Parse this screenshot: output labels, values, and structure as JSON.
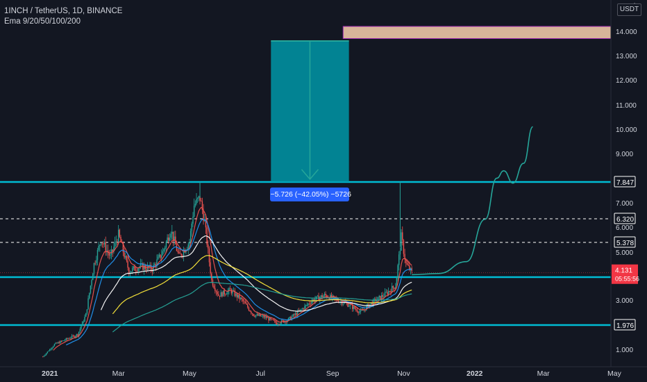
{
  "header": {
    "symbol_line": "1INCH / TetherUS, 1D, BINANCE",
    "indicator_line": "Ema 9/20/50/100/200"
  },
  "price_axis": {
    "unit_button": "USDT",
    "partial_top_label": "1",
    "ticks": [
      {
        "value": 14.0,
        "label": "14.000"
      },
      {
        "value": 13.0,
        "label": "13.000"
      },
      {
        "value": 12.0,
        "label": "12.000"
      },
      {
        "value": 11.0,
        "label": "11.000"
      },
      {
        "value": 10.0,
        "label": "10.000"
      },
      {
        "value": 9.0,
        "label": "9.000"
      },
      {
        "value": 8.0,
        "label": "8.000"
      },
      {
        "value": 7.0,
        "label": "7.000"
      },
      {
        "value": 6.0,
        "label": "6.000"
      },
      {
        "value": 5.0,
        "label": "5.000"
      },
      {
        "value": 3.0,
        "label": "3.000"
      },
      {
        "value": 1.0,
        "label": "1.000"
      }
    ],
    "badges": [
      {
        "value": 7.847,
        "label": "7.847",
        "bg": "#131722",
        "border": "#ffffff",
        "fg": "#ffffff"
      },
      {
        "value": 6.32,
        "label": "6.320",
        "bg": "#131722",
        "border": "#ffffff",
        "fg": "#ffffff"
      },
      {
        "value": 5.378,
        "label": "5.378",
        "bg": "#131722",
        "border": "#ffffff",
        "fg": "#ffffff"
      },
      {
        "value": 3.947,
        "label": "3.947",
        "bg": "#00bcd4",
        "border": "#00bcd4",
        "fg": "#131722"
      },
      {
        "value": 1.976,
        "label": "1.976",
        "bg": "#131722",
        "border": "#ffffff",
        "fg": "#ffffff"
      }
    ],
    "last_price": {
      "label": "4.131",
      "countdown": "05:55:56",
      "bg": "#f23645"
    }
  },
  "time_axis": {
    "labels": [
      {
        "date": "2021-01-01",
        "label": "2021",
        "bold": true
      },
      {
        "date": "2021-03-01",
        "label": "Mar",
        "bold": false
      },
      {
        "date": "2021-05-01",
        "label": "May",
        "bold": false
      },
      {
        "date": "2021-07-01",
        "label": "Jul",
        "bold": false
      },
      {
        "date": "2021-09-01",
        "label": "Sep",
        "bold": false
      },
      {
        "date": "2021-11-01",
        "label": "Nov",
        "bold": false
      },
      {
        "date": "2022-01-01",
        "label": "2022",
        "bold": true
      },
      {
        "date": "2022-03-01",
        "label": "Mar",
        "bold": false
      },
      {
        "date": "2022-05-01",
        "label": "May",
        "bold": false
      }
    ]
  },
  "measure_tool": {
    "label": "−5.726 (−42.05%) −5726",
    "from_price": 13.6,
    "to_price": 7.847,
    "start_date": "2021-07-10",
    "end_date": "2021-09-15",
    "fill": "#0097a7",
    "line": "#26a69a"
  },
  "target_zone": {
    "from_price": 13.7,
    "to_price": 14.2,
    "start_date": "2021-09-10",
    "fill": "#d7b59a",
    "border": "#9c27b0"
  },
  "horizontal_levels": [
    {
      "price": 7.847,
      "style": "solid",
      "color": "#00bcd4"
    },
    {
      "price": 6.32,
      "style": "dashed",
      "color": "#ffffff"
    },
    {
      "price": 5.378,
      "style": "dashed",
      "color": "#ffffff"
    },
    {
      "price": 3.947,
      "style": "solid",
      "color": "#00bcd4"
    },
    {
      "price": 1.976,
      "style": "solid",
      "color": "#00bcd4"
    }
  ],
  "projection_path": [
    {
      "date": "2021-11-08",
      "price": 4.05
    },
    {
      "date": "2021-12-01",
      "price": 4.1
    },
    {
      "date": "2021-12-25",
      "price": 4.6
    },
    {
      "date": "2022-01-10",
      "price": 6.3
    },
    {
      "date": "2022-01-20",
      "price": 8.0
    },
    {
      "date": "2022-01-26",
      "price": 8.3
    },
    {
      "date": "2022-02-03",
      "price": 7.8
    },
    {
      "date": "2022-02-12",
      "price": 8.6
    },
    {
      "date": "2022-02-20",
      "price": 10.1
    }
  ],
  "chart_data": {
    "type": "candlestick",
    "symbol": "1INCH / TetherUS",
    "interval": "1D",
    "exchange": "BINANCE",
    "price_range": [
      0.6,
      15.3
    ],
    "time_range": [
      "2020-12-25",
      "2022-05-10"
    ],
    "colors": {
      "up": "#26a69a",
      "down": "#ef5350"
    },
    "price_path": [
      {
        "date": "2020-12-26",
        "price": 0.7
      },
      {
        "date": "2021-01-05",
        "price": 1.2
      },
      {
        "date": "2021-01-15",
        "price": 1.4
      },
      {
        "date": "2021-01-25",
        "price": 1.6
      },
      {
        "date": "2021-02-01",
        "price": 2.4
      },
      {
        "date": "2021-02-08",
        "price": 4.5
      },
      {
        "date": "2021-02-14",
        "price": 5.5
      },
      {
        "date": "2021-02-22",
        "price": 4.8
      },
      {
        "date": "2021-03-01",
        "price": 5.7
      },
      {
        "date": "2021-03-10",
        "price": 4.2
      },
      {
        "date": "2021-03-20",
        "price": 4.4
      },
      {
        "date": "2021-03-30",
        "price": 4.3
      },
      {
        "date": "2021-04-08",
        "price": 5.0
      },
      {
        "date": "2021-04-15",
        "price": 5.9
      },
      {
        "date": "2021-04-22",
        "price": 4.8
      },
      {
        "date": "2021-05-01",
        "price": 5.4
      },
      {
        "date": "2021-05-05",
        "price": 6.9
      },
      {
        "date": "2021-05-10",
        "price": 7.2
      },
      {
        "date": "2021-05-14",
        "price": 6.2
      },
      {
        "date": "2021-05-20",
        "price": 3.8
      },
      {
        "date": "2021-05-26",
        "price": 3.2
      },
      {
        "date": "2021-06-05",
        "price": 3.4
      },
      {
        "date": "2021-06-15",
        "price": 3.0
      },
      {
        "date": "2021-06-25",
        "price": 2.4
      },
      {
        "date": "2021-07-05",
        "price": 2.3
      },
      {
        "date": "2021-07-15",
        "price": 2.05
      },
      {
        "date": "2021-07-25",
        "price": 2.2
      },
      {
        "date": "2021-08-05",
        "price": 2.6
      },
      {
        "date": "2021-08-15",
        "price": 3.0
      },
      {
        "date": "2021-08-25",
        "price": 3.2
      },
      {
        "date": "2021-09-05",
        "price": 3.0
      },
      {
        "date": "2021-09-15",
        "price": 2.8
      },
      {
        "date": "2021-09-25",
        "price": 2.5
      },
      {
        "date": "2021-10-05",
        "price": 2.9
      },
      {
        "date": "2021-10-15",
        "price": 3.2
      },
      {
        "date": "2021-10-25",
        "price": 3.6
      },
      {
        "date": "2021-10-30",
        "price": 5.6
      },
      {
        "date": "2021-11-03",
        "price": 4.5
      },
      {
        "date": "2021-11-08",
        "price": 4.13
      }
    ],
    "spikes": [
      {
        "date": "2021-10-29",
        "high": 7.85
      },
      {
        "date": "2021-05-10",
        "high": 7.85
      }
    ],
    "ema_series": [
      {
        "color": "#ef5350",
        "period_index": 0
      },
      {
        "color": "#2196f3",
        "period_index": 1
      },
      {
        "color": "#ffffff",
        "period_index": 2
      },
      {
        "color": "#ffeb3b",
        "period_index": 3
      },
      {
        "color": "#26a69a",
        "period_index": 4
      }
    ]
  }
}
